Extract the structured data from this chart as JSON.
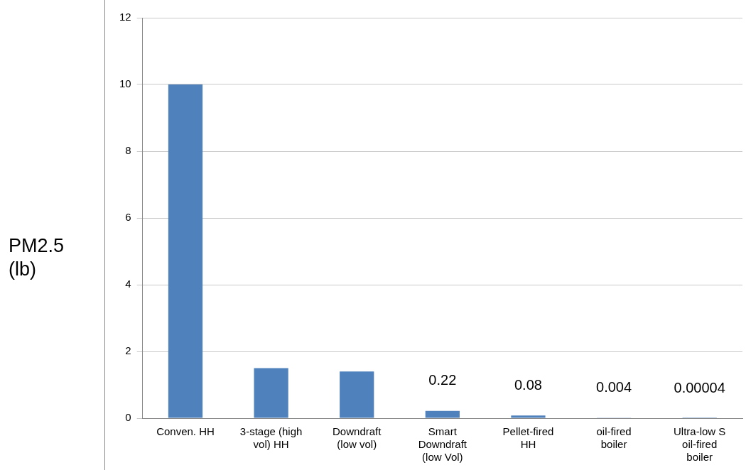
{
  "chart_data": {
    "type": "bar",
    "ylabel": "PM2.5 (lb)",
    "categories": [
      "Conven. HH",
      "3-stage (high vol) HH",
      "Downdraft (low vol)",
      "Smart Downdraft (low Vol)",
      "Pellet-fired HH",
      "oil-fired boiler",
      "Ultra-low S oil-fired boiler"
    ],
    "values": [
      10,
      1.5,
      1.4,
      0.22,
      0.08,
      0.004,
      4e-05
    ],
    "value_labels": [
      null,
      null,
      null,
      "0.22",
      "0.08",
      "0.004",
      "0.00004"
    ],
    "color": "#4f81bd",
    "ylim": [
      0,
      12
    ],
    "yticks": [
      0,
      2,
      4,
      6,
      8,
      10,
      12
    ],
    "grid": "y",
    "legend": false
  }
}
